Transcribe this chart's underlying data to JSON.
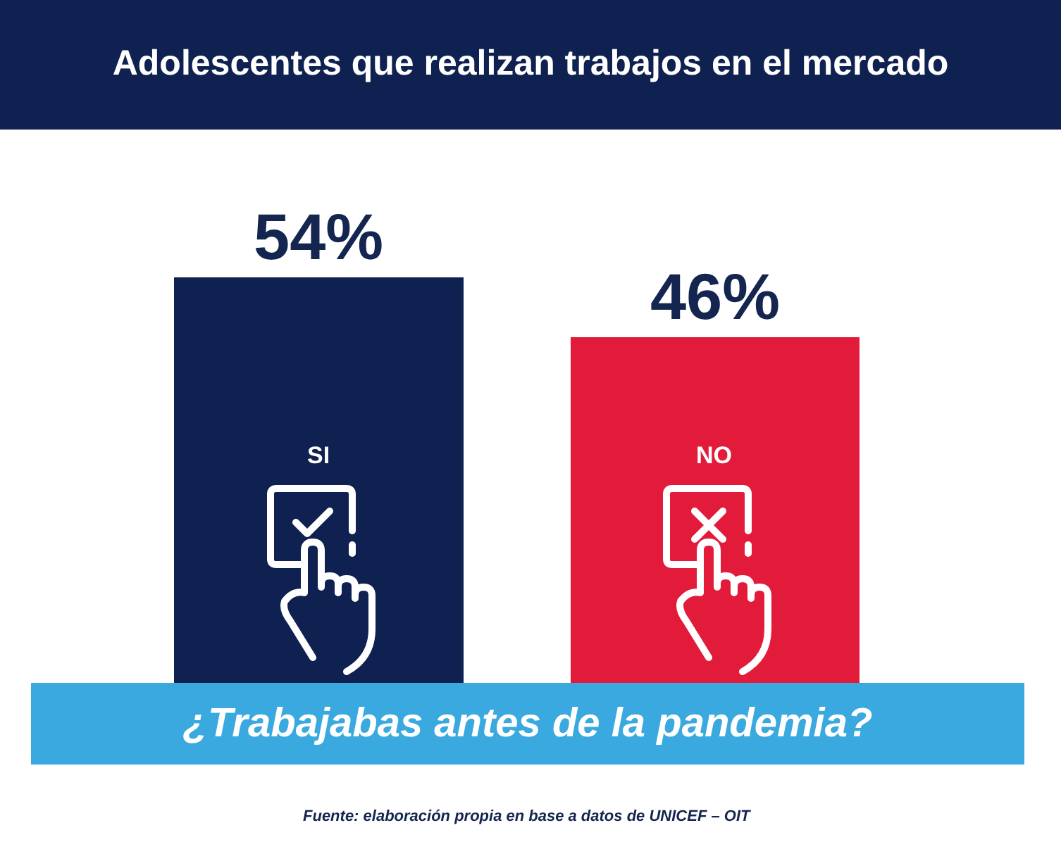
{
  "chart_data": {
    "type": "bar",
    "title": "Adolescentes que realizan trabajos en el mercado",
    "xlabel": "¿Trabajabas antes de la pandemia?",
    "categories": [
      "SI",
      "NO"
    ],
    "values": [
      54,
      46
    ],
    "colors": [
      "#0f2150",
      "#e31b3a"
    ],
    "value_labels": [
      "54%",
      "46%"
    ],
    "grid": false,
    "annotations": [
      "Fuente: elaboración propia en base a datos de UNICEF – OIT"
    ]
  }
}
